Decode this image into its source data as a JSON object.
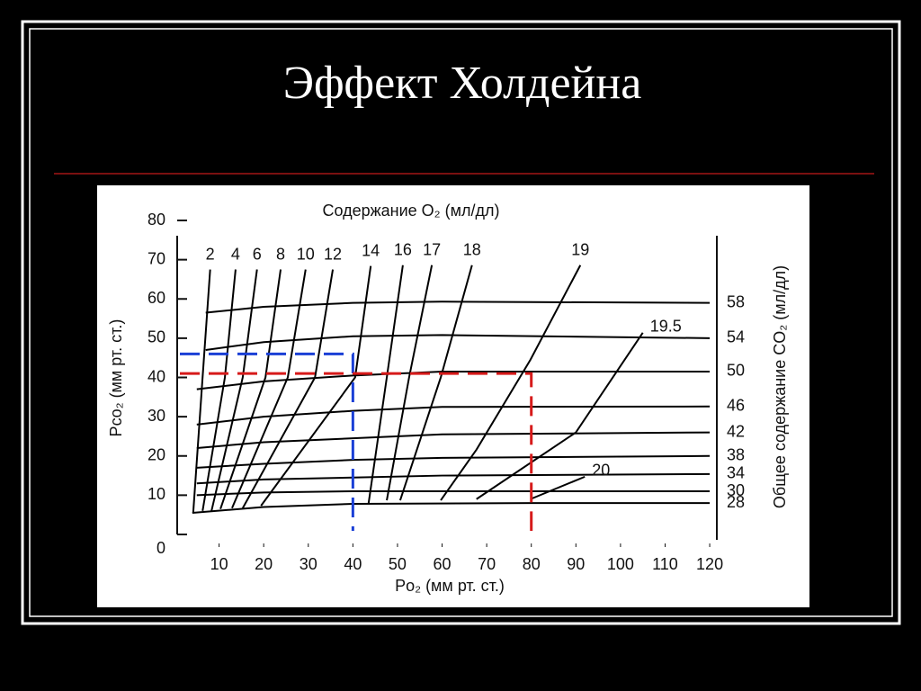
{
  "title": "Эффект Холдейна",
  "chart_data": {
    "type": "line",
    "title": "Содержание O₂ (мл/дл)",
    "xlabel": "Po₂ (мм рт. ст.)",
    "ylabel": "Pco₂ (мм рт. ст.)",
    "y2label": "Общее содержание CO₂ (мл/дл)",
    "xlim": [
      0,
      122
    ],
    "ylim": [
      0,
      80
    ],
    "xticks": [
      10,
      20,
      30,
      40,
      50,
      60,
      70,
      80,
      90,
      100,
      110,
      120
    ],
    "yticks": [
      0,
      10,
      20,
      30,
      40,
      50,
      60,
      70,
      80
    ],
    "color": "#000000",
    "o2_curves": [
      {
        "name": "2",
        "x": [
          4.2,
          6.3,
          8
        ],
        "y": [
          5.5,
          40,
          67.5
        ]
      },
      {
        "name": "4",
        "x": [
          6.3,
          11.3,
          13.7
        ],
        "y": [
          6,
          40,
          67.5
        ]
      },
      {
        "name": "6",
        "x": [
          8.3,
          15.3,
          18.5
        ],
        "y": [
          6,
          40,
          67.5
        ]
      },
      {
        "name": "8",
        "x": [
          10.3,
          20.4,
          23.8
        ],
        "y": [
          6.5,
          40,
          67.5
        ]
      },
      {
        "name": "10",
        "x": [
          12.9,
          25.4,
          29.4
        ],
        "y": [
          6.7,
          40,
          67.5
        ]
      },
      {
        "name": "12",
        "x": [
          15.3,
          31.5,
          35.5
        ],
        "y": [
          6.7,
          40,
          67.5
        ]
      },
      {
        "name": "14",
        "x": [
          19.4,
          40.5,
          44
        ],
        "y": [
          7.3,
          40,
          68.4
        ]
      },
      {
        "name": "16",
        "x": [
          43.5,
          47.6,
          51.2
        ],
        "y": [
          7.8,
          40,
          68.6
        ]
      },
      {
        "name": "17",
        "x": [
          47.6,
          52.6,
          57.7
        ],
        "y": [
          8.7,
          40,
          68.6
        ]
      },
      {
        "name": "18",
        "x": [
          50.6,
          59.7,
          66.7
        ],
        "y": [
          8.7,
          40,
          68.6
        ]
      },
      {
        "name": "19",
        "x": [
          59.7,
          67.7,
          79.8,
          91
        ],
        "y": [
          8.7,
          21.6,
          44.5,
          68.6
        ]
      },
      {
        "name": "19.5",
        "x": [
          67.7,
          90,
          105
        ],
        "y": [
          9,
          26,
          51.4
        ]
      },
      {
        "name": "20",
        "x": [
          79.8,
          92
        ],
        "y": [
          9,
          14.7
        ]
      }
    ],
    "co2_curves": [
      {
        "name": "58",
        "x": [
          7,
          20,
          40,
          60,
          80,
          120
        ],
        "y": [
          56.5,
          58,
          59,
          59.3,
          59.2,
          59
        ]
      },
      {
        "name": "54",
        "x": [
          7,
          20,
          40,
          60,
          120
        ],
        "y": [
          47,
          49,
          50.5,
          50.8,
          50
        ]
      },
      {
        "name": "50",
        "x": [
          5,
          20,
          40,
          60,
          120
        ],
        "y": [
          37,
          39,
          40.5,
          41.5,
          41.5
        ]
      },
      {
        "name": "46",
        "x": [
          5,
          20,
          40,
          60,
          120
        ],
        "y": [
          28,
          30,
          31.5,
          32.5,
          32.6
        ]
      },
      {
        "name": "42",
        "x": [
          5,
          20,
          40,
          60,
          120
        ],
        "y": [
          22,
          23.5,
          24.5,
          25.5,
          26
        ]
      },
      {
        "name": "38",
        "x": [
          5,
          20,
          40,
          60,
          120
        ],
        "y": [
          17,
          18,
          19,
          19.5,
          20
        ]
      },
      {
        "name": "34",
        "x": [
          5,
          20,
          40,
          60,
          120
        ],
        "y": [
          13,
          14,
          14.5,
          15,
          15.4
        ]
      },
      {
        "name": "30",
        "x": [
          5,
          20,
          40,
          120
        ],
        "y": [
          10,
          10.7,
          11,
          11
        ]
      },
      {
        "name": "28",
        "x": [
          4,
          20,
          40,
          80,
          120
        ],
        "y": [
          5.5,
          7,
          7.8,
          8,
          8
        ]
      }
    ],
    "guides": [
      {
        "color": "#1a3fd6",
        "x": 40,
        "y": 46
      },
      {
        "color": "#d61a1a",
        "x": 80,
        "y": 41
      }
    ]
  }
}
